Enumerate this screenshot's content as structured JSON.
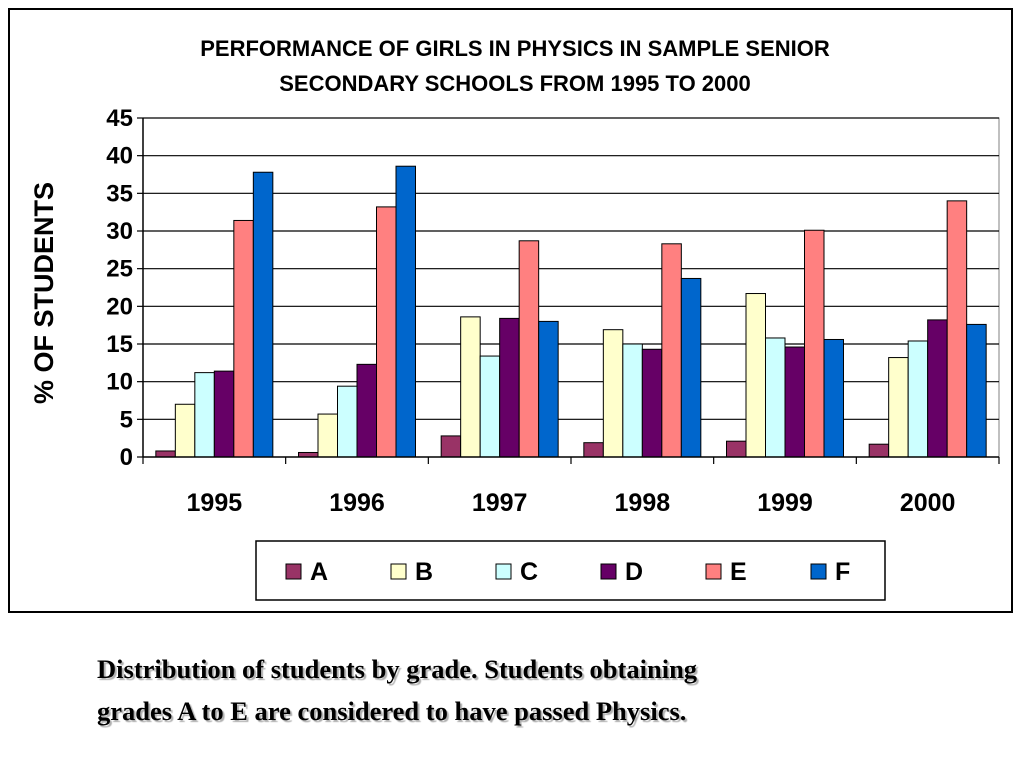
{
  "chart_data": {
    "type": "bar",
    "title_lines": [
      "PERFORMANCE OF GIRLS IN PHYSICS IN SAMPLE SENIOR",
      "SECONDARY SCHOOLS FROM 1995 TO 2000"
    ],
    "xlabel": "",
    "ylabel": "% OF STUDENTS",
    "ylim": [
      0,
      45
    ],
    "yticks": [
      "0",
      "5",
      "10",
      "15",
      "20",
      "25",
      "30",
      "35",
      "40",
      "45"
    ],
    "grid": "horizontal",
    "legend_placement": "bottom",
    "categories": [
      "1995",
      "1996",
      "1997",
      "1998",
      "1999",
      "2000"
    ],
    "series": [
      {
        "name": "A",
        "color": "#993366",
        "values": [
          0.8,
          0.6,
          2.8,
          1.9,
          2.1,
          1.7
        ]
      },
      {
        "name": "B",
        "color": "#FFFFCC",
        "values": [
          7.0,
          5.7,
          18.6,
          16.9,
          21.7,
          13.2
        ]
      },
      {
        "name": "C",
        "color": "#CCFFFF",
        "values": [
          11.2,
          9.4,
          13.4,
          15.0,
          15.8,
          15.4
        ]
      },
      {
        "name": "D",
        "color": "#660066",
        "values": [
          11.4,
          12.3,
          18.4,
          14.3,
          14.6,
          18.2
        ]
      },
      {
        "name": "E",
        "color": "#FF8080",
        "values": [
          31.4,
          33.2,
          28.7,
          28.3,
          30.1,
          34.0
        ]
      },
      {
        "name": "F",
        "color": "#0066CC",
        "values": [
          37.8,
          38.6,
          18.0,
          23.7,
          15.6,
          17.6
        ]
      }
    ]
  },
  "caption": {
    "line1": "Distribution of students by grade. Students obtaining",
    "line2": "grades A to E are considered to have passed Physics."
  }
}
